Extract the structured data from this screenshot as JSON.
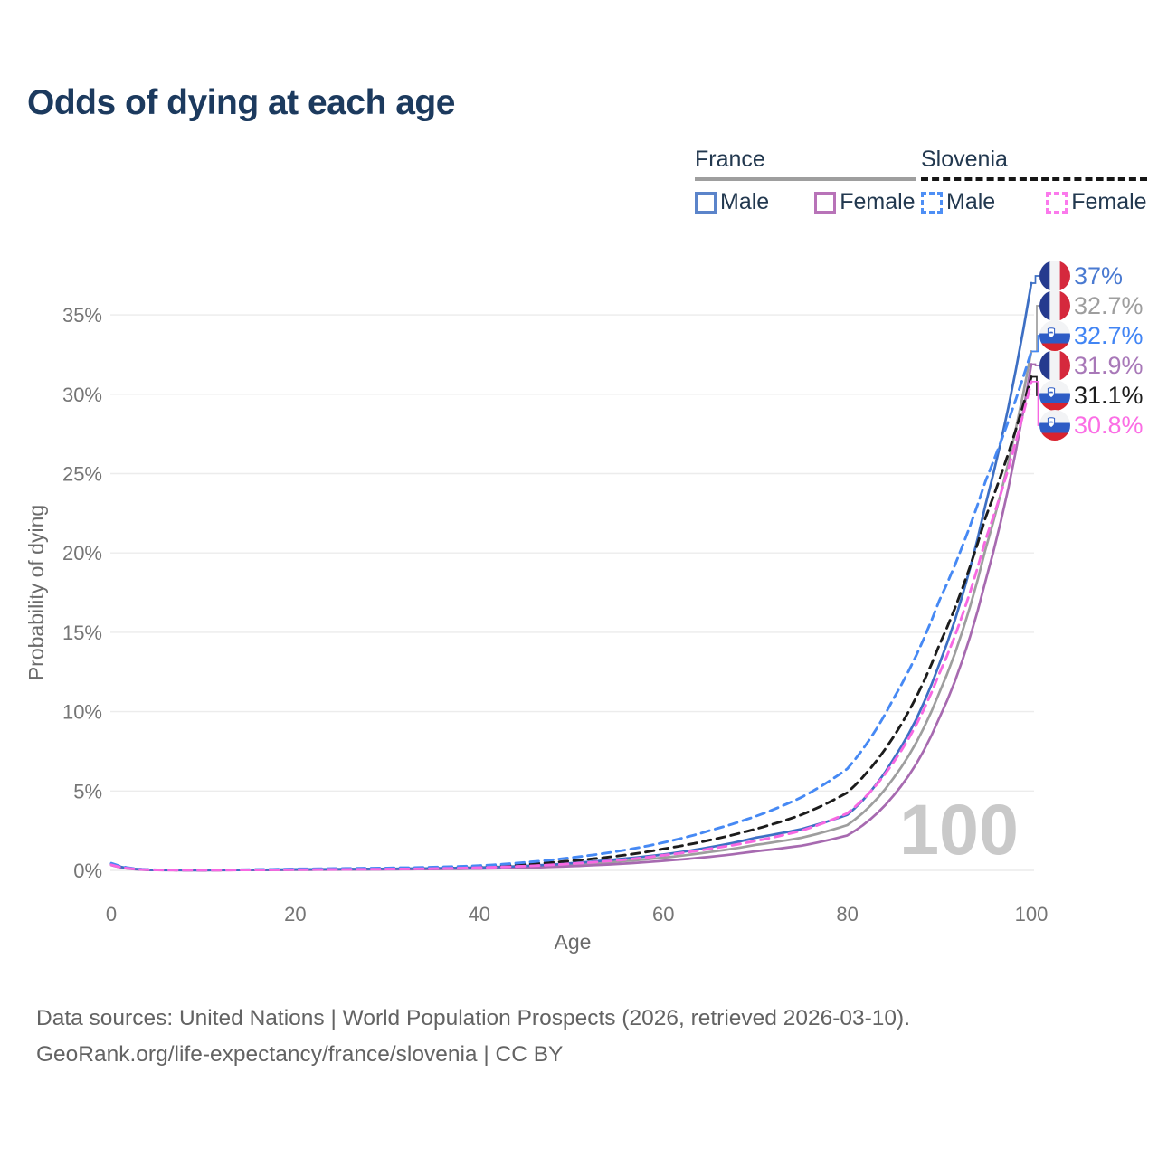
{
  "title": "Odds of dying at each age",
  "legend": {
    "france": {
      "label": "France",
      "male": "Male",
      "female": "Female"
    },
    "slovenia": {
      "label": "Slovenia",
      "male": "Male",
      "female": "Female"
    }
  },
  "chart_data": {
    "type": "line",
    "title": "Odds of dying at each age",
    "xlabel": "Age",
    "ylabel": "Probability of dying",
    "watermark": "100",
    "xlim": [
      0,
      100
    ],
    "ylim_pct": [
      0,
      38.5
    ],
    "grid": true,
    "legend_position": "top-right",
    "x_ticks": [
      0,
      20,
      40,
      60,
      80,
      100
    ],
    "y_ticks": [
      {
        "value": 0,
        "label": "0%"
      },
      {
        "value": 5,
        "label": "5%"
      },
      {
        "value": 10,
        "label": "10%"
      },
      {
        "value": 15,
        "label": "15%"
      },
      {
        "value": 20,
        "label": "20%"
      },
      {
        "value": 25,
        "label": "25%"
      },
      {
        "value": 30,
        "label": "30%"
      },
      {
        "value": 35,
        "label": "35%"
      }
    ],
    "x": [
      0,
      5,
      10,
      15,
      20,
      25,
      30,
      35,
      40,
      45,
      50,
      55,
      60,
      65,
      70,
      75,
      80,
      85,
      90,
      95,
      100
    ],
    "series": [
      {
        "id": "france-both",
        "name": "France (both sexes)",
        "country": "France",
        "sex": "Both",
        "color": "#9e9e9e",
        "dashed": false,
        "values": [
          0.37,
          0.018,
          0.01,
          0.028,
          0.045,
          0.06,
          0.08,
          0.1,
          0.14,
          0.22,
          0.35,
          0.55,
          0.8,
          1.15,
          1.6,
          2.05,
          2.85,
          5.8,
          11.2,
          20.2,
          32.7
        ],
        "end_label": {
          "text": "32.7%",
          "color": "#9e9e9e",
          "flag": "france",
          "slot": 1
        }
      },
      {
        "id": "france-female",
        "name": "France Female",
        "country": "France",
        "sex": "Female",
        "color": "#a76ab0",
        "dashed": false,
        "values": [
          0.33,
          0.015,
          0.008,
          0.02,
          0.032,
          0.045,
          0.06,
          0.08,
          0.11,
          0.17,
          0.26,
          0.4,
          0.6,
          0.85,
          1.2,
          1.55,
          2.2,
          4.7,
          9.6,
          18.2,
          31.9
        ],
        "end_label": {
          "text": "31.9%",
          "color": "#a878b8",
          "flag": "france",
          "slot": 3
        }
      },
      {
        "id": "france-male",
        "name": "France Male",
        "country": "France",
        "sex": "Male",
        "color": "#3d6fc4",
        "dashed": false,
        "values": [
          0.4,
          0.02,
          0.012,
          0.035,
          0.06,
          0.08,
          0.1,
          0.13,
          0.18,
          0.28,
          0.45,
          0.7,
          1.0,
          1.45,
          2.05,
          2.6,
          3.5,
          7.0,
          13.0,
          23.0,
          37.0
        ],
        "end_label": {
          "text": "37%",
          "color": "#4a7ad1",
          "flag": "france",
          "slot": 0
        }
      },
      {
        "id": "slovenia-both",
        "name": "Slovenia (both sexes)",
        "country": "Slovenia",
        "sex": "Both",
        "color": "#1c1c1c",
        "dashed": true,
        "values": [
          0.4,
          0.025,
          0.013,
          0.035,
          0.07,
          0.09,
          0.12,
          0.16,
          0.24,
          0.38,
          0.6,
          0.9,
          1.35,
          1.9,
          2.6,
          3.5,
          4.9,
          8.4,
          14.2,
          22.2,
          31.1
        ],
        "end_label": {
          "text": "31.1%",
          "color": "#1c1c1c",
          "flag": "slovenia",
          "slot": 4
        }
      },
      {
        "id": "slovenia-male",
        "name": "Slovenia Male",
        "country": "Slovenia",
        "sex": "Male",
        "color": "#4689f4",
        "dashed": true,
        "values": [
          0.45,
          0.03,
          0.015,
          0.045,
          0.09,
          0.12,
          0.15,
          0.2,
          0.3,
          0.5,
          0.8,
          1.2,
          1.75,
          2.5,
          3.4,
          4.6,
          6.4,
          10.8,
          17.0,
          24.5,
          32.7
        ],
        "end_label": {
          "text": "32.7%",
          "color": "#4285f4",
          "flag": "slovenia",
          "slot": 2
        }
      },
      {
        "id": "slovenia-female",
        "name": "Slovenia Female",
        "country": "Slovenia",
        "sex": "Female",
        "color": "#f768e2",
        "dashed": true,
        "values": [
          0.35,
          0.02,
          0.01,
          0.025,
          0.045,
          0.06,
          0.08,
          0.11,
          0.17,
          0.27,
          0.42,
          0.63,
          0.95,
          1.35,
          1.85,
          2.5,
          3.6,
          6.8,
          12.4,
          20.8,
          30.8
        ],
        "end_label": {
          "text": "30.8%",
          "color": "#fb6ee5",
          "flag": "slovenia",
          "slot": 5
        }
      }
    ]
  },
  "footer": {
    "line1": "Data sources: United Nations | World Population Prospects (2026, retrieved 2026-03-10).",
    "line2": "GeoRank.org/life-expectancy/france/slovenia | CC BY"
  }
}
